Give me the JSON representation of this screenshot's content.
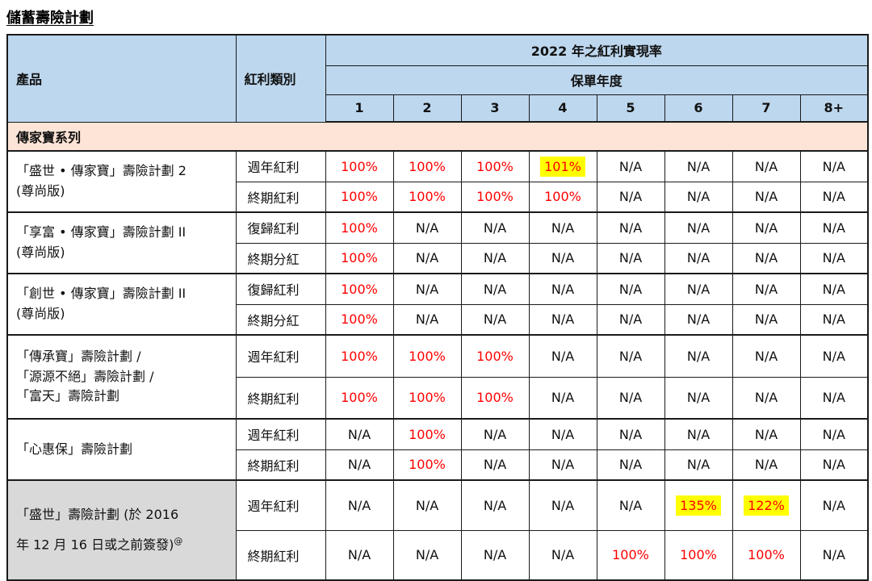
{
  "page": {
    "title": "儲蓄壽險計劃"
  },
  "colors": {
    "header_bg": "#BDD7EE",
    "section_bg": "#FCE4D6",
    "shaded_product_bg": "#D9D9D9",
    "value_red": "#FF0000",
    "value_black": "#111111",
    "highlight_yellow": "#FFFF00"
  },
  "table": {
    "header": {
      "product": "產品",
      "dividend_type": "紅利類別",
      "year_title": "2022 年之紅利實現率",
      "policy_year": "保單年度",
      "year_columns": [
        "1",
        "2",
        "3",
        "4",
        "5",
        "6",
        "7",
        "8+"
      ]
    },
    "section_label": "傳家寶系列",
    "groups": [
      {
        "product_lines": [
          "「盛世 • 傳家寶」壽險計劃 2",
          "(尊尚版)"
        ],
        "rows": [
          {
            "type": "週年紅利",
            "cells": [
              {
                "text": "100%",
                "color": "red"
              },
              {
                "text": "100%",
                "color": "red"
              },
              {
                "text": "100%",
                "color": "red"
              },
              {
                "text": "101%",
                "color": "red",
                "highlight": true
              },
              {
                "text": "N/A",
                "color": "black"
              },
              {
                "text": "N/A",
                "color": "black"
              },
              {
                "text": "N/A",
                "color": "black"
              },
              {
                "text": "N/A",
                "color": "black"
              }
            ]
          },
          {
            "type": "終期紅利",
            "cells": [
              {
                "text": "100%",
                "color": "red"
              },
              {
                "text": "100%",
                "color": "red"
              },
              {
                "text": "100%",
                "color": "red"
              },
              {
                "text": "100%",
                "color": "red"
              },
              {
                "text": "N/A",
                "color": "black"
              },
              {
                "text": "N/A",
                "color": "black"
              },
              {
                "text": "N/A",
                "color": "black"
              },
              {
                "text": "N/A",
                "color": "black"
              }
            ]
          }
        ]
      },
      {
        "product_lines": [
          "「享富 • 傳家寶」壽險計劃 II",
          "(尊尚版)"
        ],
        "rows": [
          {
            "type": "復歸紅利",
            "cells": [
              {
                "text": "100%",
                "color": "red"
              },
              {
                "text": "N/A",
                "color": "black"
              },
              {
                "text": "N/A",
                "color": "black"
              },
              {
                "text": "N/A",
                "color": "black"
              },
              {
                "text": "N/A",
                "color": "black"
              },
              {
                "text": "N/A",
                "color": "black"
              },
              {
                "text": "N/A",
                "color": "black"
              },
              {
                "text": "N/A",
                "color": "black"
              }
            ]
          },
          {
            "type": "終期分紅",
            "cells": [
              {
                "text": "100%",
                "color": "red"
              },
              {
                "text": "N/A",
                "color": "black"
              },
              {
                "text": "N/A",
                "color": "black"
              },
              {
                "text": "N/A",
                "color": "black"
              },
              {
                "text": "N/A",
                "color": "black"
              },
              {
                "text": "N/A",
                "color": "black"
              },
              {
                "text": "N/A",
                "color": "black"
              },
              {
                "text": "N/A",
                "color": "black"
              }
            ]
          }
        ]
      },
      {
        "product_lines": [
          "「創世 • 傳家寶」壽險計劃 II",
          "(尊尚版)"
        ],
        "rows": [
          {
            "type": "復歸紅利",
            "cells": [
              {
                "text": "100%",
                "color": "red"
              },
              {
                "text": "N/A",
                "color": "black"
              },
              {
                "text": "N/A",
                "color": "black"
              },
              {
                "text": "N/A",
                "color": "black"
              },
              {
                "text": "N/A",
                "color": "black"
              },
              {
                "text": "N/A",
                "color": "black"
              },
              {
                "text": "N/A",
                "color": "black"
              },
              {
                "text": "N/A",
                "color": "black"
              }
            ]
          },
          {
            "type": "終期分紅",
            "cells": [
              {
                "text": "100%",
                "color": "red"
              },
              {
                "text": "N/A",
                "color": "black"
              },
              {
                "text": "N/A",
                "color": "black"
              },
              {
                "text": "N/A",
                "color": "black"
              },
              {
                "text": "N/A",
                "color": "black"
              },
              {
                "text": "N/A",
                "color": "black"
              },
              {
                "text": "N/A",
                "color": "black"
              },
              {
                "text": "N/A",
                "color": "black"
              }
            ]
          }
        ]
      },
      {
        "product_lines": [
          "「傳承寶」壽險計劃 /",
          "「源源不絕」壽險計劃 /",
          "「富天」壽險計劃"
        ],
        "rows": [
          {
            "type": "週年紅利",
            "cells": [
              {
                "text": "100%",
                "color": "red"
              },
              {
                "text": "100%",
                "color": "red"
              },
              {
                "text": "100%",
                "color": "red"
              },
              {
                "text": "N/A",
                "color": "black"
              },
              {
                "text": "N/A",
                "color": "black"
              },
              {
                "text": "N/A",
                "color": "black"
              },
              {
                "text": "N/A",
                "color": "black"
              },
              {
                "text": "N/A",
                "color": "black"
              }
            ]
          },
          {
            "type": "終期紅利",
            "cells": [
              {
                "text": "100%",
                "color": "red"
              },
              {
                "text": "100%",
                "color": "red"
              },
              {
                "text": "100%",
                "color": "red"
              },
              {
                "text": "N/A",
                "color": "black"
              },
              {
                "text": "N/A",
                "color": "black"
              },
              {
                "text": "N/A",
                "color": "black"
              },
              {
                "text": "N/A",
                "color": "black"
              },
              {
                "text": "N/A",
                "color": "black"
              }
            ]
          }
        ]
      },
      {
        "product_lines": [
          "「心惠保」壽險計劃"
        ],
        "rows": [
          {
            "type": "週年紅利",
            "cells": [
              {
                "text": "N/A",
                "color": "black"
              },
              {
                "text": "100%",
                "color": "red"
              },
              {
                "text": "N/A",
                "color": "black"
              },
              {
                "text": "N/A",
                "color": "black"
              },
              {
                "text": "N/A",
                "color": "black"
              },
              {
                "text": "N/A",
                "color": "black"
              },
              {
                "text": "N/A",
                "color": "black"
              },
              {
                "text": "N/A",
                "color": "black"
              }
            ]
          },
          {
            "type": "終期紅利",
            "cells": [
              {
                "text": "N/A",
                "color": "black"
              },
              {
                "text": "100%",
                "color": "red"
              },
              {
                "text": "N/A",
                "color": "black"
              },
              {
                "text": "N/A",
                "color": "black"
              },
              {
                "text": "N/A",
                "color": "black"
              },
              {
                "text": "N/A",
                "color": "black"
              },
              {
                "text": "N/A",
                "color": "black"
              },
              {
                "text": "N/A",
                "color": "black"
              }
            ]
          }
        ]
      },
      {
        "product_lines": [
          "「盛世」壽險計劃 (於 2016",
          "年 12 月 16 日或之前簽發)"
        ],
        "superscript": "@",
        "shaded": true,
        "rows": [
          {
            "type": "週年紅利",
            "cells": [
              {
                "text": "N/A",
                "color": "black"
              },
              {
                "text": "N/A",
                "color": "black"
              },
              {
                "text": "N/A",
                "color": "black"
              },
              {
                "text": "N/A",
                "color": "black"
              },
              {
                "text": "N/A",
                "color": "black"
              },
              {
                "text": "135%",
                "color": "red",
                "highlight": true
              },
              {
                "text": "122%",
                "color": "red",
                "highlight": true
              },
              {
                "text": "N/A",
                "color": "black"
              }
            ]
          },
          {
            "type": "終期紅利",
            "cells": [
              {
                "text": "N/A",
                "color": "black"
              },
              {
                "text": "N/A",
                "color": "black"
              },
              {
                "text": "N/A",
                "color": "black"
              },
              {
                "text": "N/A",
                "color": "black"
              },
              {
                "text": "100%",
                "color": "red"
              },
              {
                "text": "100%",
                "color": "red"
              },
              {
                "text": "100%",
                "color": "red"
              },
              {
                "text": "N/A",
                "color": "black"
              }
            ]
          }
        ]
      }
    ]
  }
}
